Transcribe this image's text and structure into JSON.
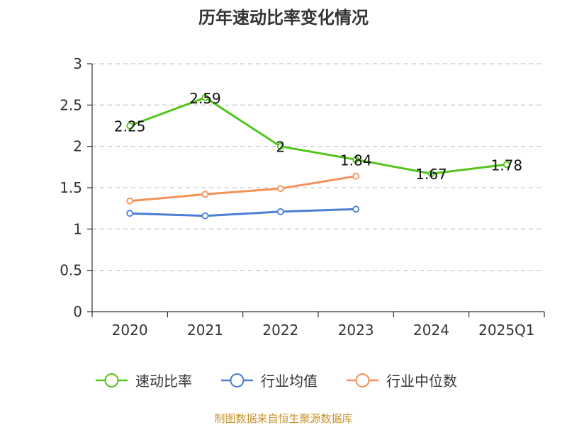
{
  "chart_data": {
    "type": "line",
    "title": "历年速动比率变化情况",
    "categories": [
      "2020",
      "2021",
      "2022",
      "2023",
      "2024",
      "2025Q1"
    ],
    "ylim": [
      0,
      3
    ],
    "yticks": [
      "0",
      "0.5",
      "1",
      "1.5",
      "2",
      "2.5",
      "3"
    ],
    "grid": true,
    "legend": "bottom",
    "series": [
      {
        "name": "速动比率",
        "color": "#52c41a",
        "values": [
          2.25,
          2.59,
          2.0,
          1.84,
          1.67,
          1.78
        ],
        "labels": [
          "2.25",
          "2.59",
          "2",
          "1.84",
          "1.67",
          "1.78"
        ]
      },
      {
        "name": "行业均值",
        "color": "#4a7fd4",
        "values": [
          1.19,
          1.16,
          1.21,
          1.24,
          null,
          null
        ]
      },
      {
        "name": "行业中位数",
        "color": "#f4915a",
        "values": [
          1.34,
          1.42,
          1.49,
          1.64,
          null,
          null
        ]
      }
    ]
  },
  "source": "制图数据来自恒生聚源数据库"
}
